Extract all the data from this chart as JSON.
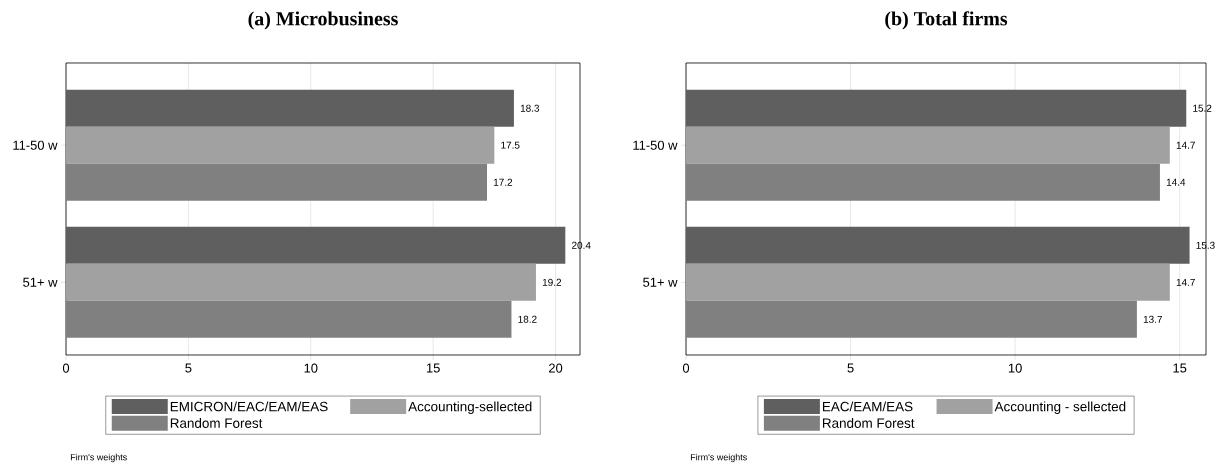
{
  "chart_data": [
    {
      "type": "bar",
      "orientation": "horizontal",
      "title": "(a) Microbusiness",
      "categories": [
        "11-50 w",
        "51+ w"
      ],
      "series": [
        {
          "name": "EMICRON/EAC/EAM/EAS",
          "color": "#5f5f5f",
          "values": [
            18.3,
            20.4
          ]
        },
        {
          "name": "Accounting-sellected",
          "color": "#a1a1a1",
          "values": [
            17.5,
            19.2
          ]
        },
        {
          "name": "Random Forest",
          "color": "#808080",
          "values": [
            17.2,
            18.2
          ]
        }
      ],
      "xlim": [
        0,
        21
      ],
      "xticks": [
        0,
        5,
        10,
        15,
        20
      ],
      "grid": "x",
      "legend": "bottom",
      "data_labels": true,
      "annotations": [
        "Firm's weights"
      ]
    },
    {
      "type": "bar",
      "orientation": "horizontal",
      "title": "(b) Total firms",
      "categories": [
        "11-50 w",
        "51+ w"
      ],
      "series": [
        {
          "name": "EAC/EAM/EAS",
          "color": "#5f5f5f",
          "values": [
            15.2,
            15.3
          ]
        },
        {
          "name": "Accounting - sellected",
          "color": "#a1a1a1",
          "values": [
            14.7,
            14.7
          ]
        },
        {
          "name": "Random Forest",
          "color": "#808080",
          "values": [
            14.4,
            13.7
          ]
        }
      ],
      "xlim": [
        0,
        15.8
      ],
      "xticks": [
        0,
        5,
        10,
        15
      ],
      "grid": "x",
      "legend": "bottom",
      "data_labels": true,
      "annotations": [
        "Firm's weights"
      ]
    }
  ]
}
